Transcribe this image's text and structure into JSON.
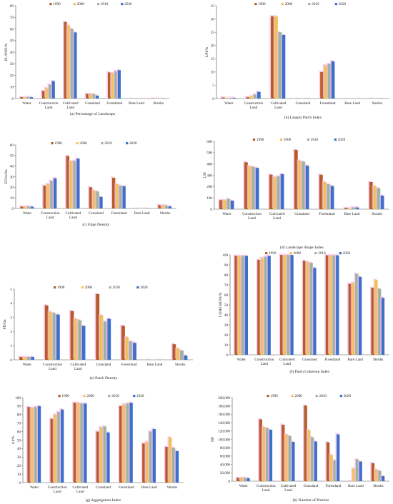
{
  "colors": {
    "1990": "#b85a2a",
    "2000": "#f2c25a",
    "2010": "#9cb3a2",
    "2020": "#3f6fce",
    "shadow": "#f2b8e6"
  },
  "legend": [
    "1990",
    "2000",
    "2010",
    "2020"
  ],
  "chart_data": [
    {
      "type": "bar",
      "ylabel": "PLAND/%",
      "caption": "(a) Percentage of Landscape",
      "ylim": [
        0,
        80
      ],
      "yticks": [
        0,
        10,
        20,
        30,
        40,
        50,
        60,
        70,
        80
      ],
      "categories": [
        [
          "Water"
        ],
        [
          "Construction",
          "Land"
        ],
        [
          "Cultivated",
          "Land"
        ],
        [
          "Grassland"
        ],
        [
          "Forestland"
        ],
        [
          "Bare Land"
        ],
        [
          "Shrubs"
        ]
      ],
      "series": [
        {
          "name": "1990",
          "values": [
            1.2,
            6.5,
            66,
            4.0,
            22.5,
            0.05,
            0.3
          ]
        },
        {
          "name": "2000",
          "values": [
            1.0,
            9.0,
            63,
            4.0,
            22.0,
            0.05,
            0.3
          ]
        },
        {
          "name": "2010",
          "values": [
            1.3,
            12.0,
            60,
            3.8,
            23.5,
            0.05,
            0.3
          ]
        },
        {
          "name": "2020",
          "values": [
            1.2,
            15.0,
            57,
            2.5,
            24.5,
            0.05,
            0.2
          ]
        }
      ]
    },
    {
      "type": "bar",
      "ylabel": "LPI/%",
      "caption": "(b) Largest Patch Index",
      "ylim": [
        0,
        35
      ],
      "yticks": [
        0,
        5,
        10,
        15,
        20,
        25,
        30,
        35
      ],
      "categories": [
        [
          "Water"
        ],
        [
          "Construction",
          "Land"
        ],
        [
          "Cultivated",
          "Land"
        ],
        [
          "Grassland"
        ],
        [
          "Forestland"
        ],
        [
          "Bare Land"
        ],
        [
          "Shrubs"
        ]
      ],
      "series": [
        {
          "name": "1990",
          "values": [
            0.4,
            0.5,
            31,
            0.05,
            10,
            0.02,
            0.05
          ]
        },
        {
          "name": "2000",
          "values": [
            0.3,
            0.8,
            31,
            0.05,
            12.5,
            0.02,
            0.05
          ]
        },
        {
          "name": "2010",
          "values": [
            0.3,
            1.5,
            25,
            0.05,
            13,
            0.02,
            0.05
          ]
        },
        {
          "name": "2020",
          "values": [
            0.3,
            2.5,
            24,
            0.05,
            14,
            0.02,
            0.05
          ]
        }
      ]
    },
    {
      "type": "bar",
      "ylabel": "ED/m/ha",
      "caption": "(c) Edge Density",
      "ylim": [
        0,
        60
      ],
      "yticks": [
        0,
        10,
        20,
        30,
        40,
        50,
        60
      ],
      "categories": [
        [
          "Water"
        ],
        [
          "Construction",
          "Land"
        ],
        [
          "Cultivated",
          "Land"
        ],
        [
          "Grassland"
        ],
        [
          "Forestland"
        ],
        [
          "Bare Land"
        ],
        [
          "Shrubs"
        ]
      ],
      "series": [
        {
          "name": "1990",
          "values": [
            1.8,
            21.5,
            49.5,
            20,
            29,
            0.2,
            3.2
          ]
        },
        {
          "name": "2000",
          "values": [
            1.8,
            23,
            44.5,
            17,
            23,
            0.2,
            3.0
          ]
        },
        {
          "name": "2010",
          "values": [
            2.0,
            26,
            45,
            16,
            21.5,
            0.2,
            2.8
          ]
        },
        {
          "name": "2020",
          "values": [
            1.7,
            28.5,
            47,
            11,
            21,
            0.2,
            2.0
          ]
        }
      ]
    },
    {
      "type": "bar",
      "ylabel": "LSI",
      "caption": "(d) Landscape Shape Index",
      "ylim": [
        0,
        600
      ],
      "yticks": [
        0,
        100,
        200,
        300,
        400,
        500,
        600
      ],
      "categories": [
        [
          "Water"
        ],
        [
          "Construction",
          "Land"
        ],
        [
          "Cultivated",
          "Land"
        ],
        [
          "Grassland"
        ],
        [
          "Forestland"
        ],
        [
          "Bare Land"
        ],
        [
          "Shrubs"
        ]
      ],
      "series": [
        {
          "name": "1990",
          "values": [
            80,
            415,
            305,
            525,
            305,
            10,
            240
          ]
        },
        {
          "name": "2000",
          "values": [
            80,
            380,
            285,
            430,
            240,
            8,
            205
          ]
        },
        {
          "name": "2010",
          "values": [
            90,
            375,
            290,
            420,
            220,
            15,
            185
          ]
        },
        {
          "name": "2020",
          "values": [
            75,
            365,
            310,
            385,
            205,
            15,
            120
          ]
        }
      ]
    },
    {
      "type": "bar",
      "ylabel": "PD/ha",
      "caption": "(e) Patch Density",
      "ylim": [
        0,
        5
      ],
      "yticks": [
        0,
        1,
        2,
        3,
        4,
        5
      ],
      "categories": [
        [
          "Water"
        ],
        [
          "Construction",
          "Land"
        ],
        [
          "Cultivated",
          "Land"
        ],
        [
          "Grassland"
        ],
        [
          "Forestland"
        ],
        [
          "Bare Land"
        ],
        [
          "Shrubs"
        ]
      ],
      "series": [
        {
          "name": "1990",
          "values": [
            0.2,
            3.85,
            3.45,
            4.65,
            2.4,
            0.01,
            1.1
          ]
        },
        {
          "name": "2000",
          "values": [
            0.2,
            3.4,
            2.9,
            3.15,
            1.6,
            0.01,
            0.8
          ]
        },
        {
          "name": "2010",
          "values": [
            0.2,
            3.3,
            2.8,
            2.7,
            1.3,
            0.01,
            0.65
          ]
        },
        {
          "name": "2020",
          "values": [
            0.2,
            3.2,
            2.4,
            2.9,
            1.2,
            0.01,
            0.3
          ]
        }
      ]
    },
    {
      "type": "bar",
      "ylabel": "COHESION/%",
      "caption": "(f) Patch Cohesion Index",
      "ylim": [
        0,
        100
      ],
      "yticks": [
        0,
        10,
        20,
        30,
        40,
        50,
        60,
        70,
        80,
        90,
        100
      ],
      "categories": [
        [
          "Water"
        ],
        [
          "Construction",
          "Land"
        ],
        [
          "Cultivated",
          "Land"
        ],
        [
          "Grassland"
        ],
        [
          "Forestland"
        ],
        [
          "Bare Land"
        ],
        [
          "Shrubs"
        ]
      ],
      "series": [
        {
          "name": "1990",
          "values": [
            99,
            95,
            99.9,
            94,
            99.5,
            71,
            67
          ]
        },
        {
          "name": "2000",
          "values": [
            99,
            97,
            99.9,
            93,
            99.5,
            72,
            75
          ]
        },
        {
          "name": "2010",
          "values": [
            99,
            98,
            99.9,
            92,
            99.5,
            81,
            66
          ]
        },
        {
          "name": "2020",
          "values": [
            99,
            99,
            99.9,
            87,
            99.5,
            78,
            57
          ]
        }
      ]
    },
    {
      "type": "bar",
      "ylabel": "AI/%",
      "caption": "(g) Aggregation Index",
      "ylim": [
        0,
        100
      ],
      "yticks": [
        0,
        10,
        20,
        30,
        40,
        50,
        60,
        70,
        80,
        90,
        100
      ],
      "categories": [
        [
          "Water"
        ],
        [
          "Construction",
          "Land"
        ],
        [
          "Cultivated",
          "Land"
        ],
        [
          "Grassland"
        ],
        [
          "Forestland"
        ],
        [
          "Bare Land"
        ],
        [
          "Shrubs"
        ]
      ],
      "series": [
        {
          "name": "1990",
          "values": [
            89,
            75,
            94,
            60,
            90,
            46,
            42
          ]
        },
        {
          "name": "2000",
          "values": [
            88,
            80,
            94,
            65,
            92,
            48,
            53
          ]
        },
        {
          "name": "2010",
          "values": [
            89,
            83,
            93,
            66,
            93,
            60,
            41
          ]
        },
        {
          "name": "2020",
          "values": [
            90,
            86,
            93,
            59,
            94,
            63,
            37
          ]
        }
      ]
    },
    {
      "type": "bar",
      "ylabel": "NP",
      "caption": "(h) Number of Patches",
      "ylim": [
        0,
        200000
      ],
      "yticks": [
        0,
        20000,
        40000,
        60000,
        80000,
        100000,
        120000,
        140000,
        160000,
        180000,
        200000
      ],
      "ytick_labels": [
        "0",
        "20,000",
        "40,000",
        "60,000",
        "80,000",
        "100,000",
        "120,000",
        "140,000",
        "160,000",
        "180,000",
        "200,000"
      ],
      "categories": [
        [
          "Water"
        ],
        [
          "Construction",
          "Land"
        ],
        [
          "Cultivated",
          "Land"
        ],
        [
          "Grassland"
        ],
        [
          "Forestland"
        ],
        [
          "Bare Land"
        ],
        [
          "Shrubs"
        ]
      ],
      "series": [
        {
          "name": "1990",
          "values": [
            8000,
            148000,
            135000,
            181000,
            93000,
            500,
            43000
          ]
        },
        {
          "name": "2000",
          "values": [
            8000,
            130000,
            112000,
            122000,
            63000,
            30000,
            28000
          ]
        },
        {
          "name": "2010",
          "values": [
            8000,
            127000,
            108000,
            105000,
            50000,
            52000,
            25000
          ]
        },
        {
          "name": "2020",
          "values": [
            7000,
            123000,
            94000,
            95000,
            112000,
            47000,
            12000
          ]
        }
      ]
    }
  ]
}
